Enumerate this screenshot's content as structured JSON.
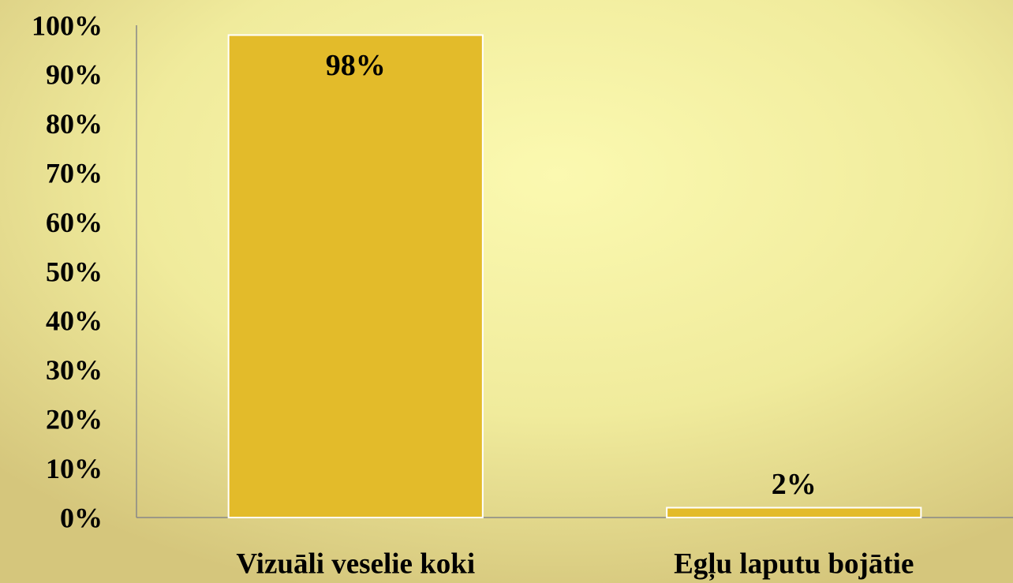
{
  "chart_data": {
    "type": "bar",
    "categories": [
      "Vizuāli veselie koki",
      "Egļu laputu bojātie"
    ],
    "values": [
      98,
      2
    ],
    "value_labels": [
      "98%",
      "2%"
    ],
    "color": "#e3bb2a",
    "ylim": [
      0,
      100
    ],
    "yticks": [
      {
        "value": 0,
        "label": "0%"
      },
      {
        "value": 10,
        "label": "10%"
      },
      {
        "value": 20,
        "label": "20%"
      },
      {
        "value": 30,
        "label": "30%"
      },
      {
        "value": 40,
        "label": "40%"
      },
      {
        "value": 50,
        "label": "50%"
      },
      {
        "value": 60,
        "label": "60%"
      },
      {
        "value": 70,
        "label": "70%"
      },
      {
        "value": 80,
        "label": "80%"
      },
      {
        "value": 90,
        "label": "90%"
      },
      {
        "value": 100,
        "label": "100%"
      }
    ],
    "grid": false
  }
}
